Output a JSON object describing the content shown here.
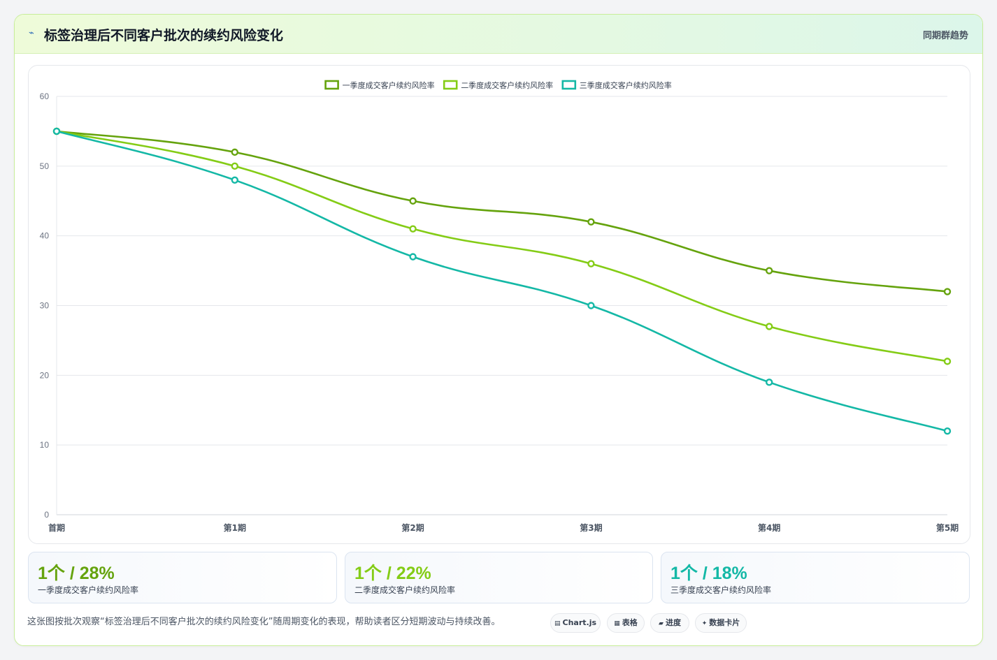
{
  "header": {
    "icon": "chart-line-icon",
    "title": "标签治理后不同客户批次的续约风险变化",
    "tag": "同期群趋势"
  },
  "chart_data": {
    "type": "line",
    "categories": [
      "首期",
      "第1期",
      "第2期",
      "第3期",
      "第4期",
      "第5期"
    ],
    "series": [
      {
        "name": "一季度成交客户续约风险率",
        "color": "#65a30d",
        "values": [
          55,
          52,
          45,
          42,
          35,
          32
        ]
      },
      {
        "name": "二季度成交客户续约风险率",
        "color": "#84cc16",
        "values": [
          55,
          50,
          41,
          36,
          27,
          22
        ]
      },
      {
        "name": "三季度成交客户续约风险率",
        "color": "#14b8a6",
        "values": [
          55,
          48,
          37,
          30,
          19,
          12
        ]
      }
    ],
    "ylim": [
      0,
      60
    ],
    "yticks": [
      0,
      10,
      20,
      30,
      40,
      50,
      60
    ],
    "grid": true,
    "legend_position": "top-center",
    "curve": "smooth"
  },
  "stats": [
    {
      "value": "1个 / 28%",
      "label": "一季度成交客户续约风险率",
      "color": "#65a30d"
    },
    {
      "value": "1个 / 22%",
      "label": "二季度成交客户续约风险率",
      "color": "#84cc16"
    },
    {
      "value": "1个 / 18%",
      "label": "三季度成交客户续约风险率",
      "color": "#14b8a6"
    }
  ],
  "footnote": "这张图按批次观察“标签治理后不同客户批次的续约风险变化”随周期变化的表现，帮助读者区分短期波动与持续改善。",
  "chips": [
    {
      "icon": "▤",
      "label": "Chart.js"
    },
    {
      "icon": "▦",
      "label": "表格"
    },
    {
      "icon": "▰",
      "label": "进度"
    },
    {
      "icon": "✦",
      "label": "数据卡片"
    }
  ]
}
